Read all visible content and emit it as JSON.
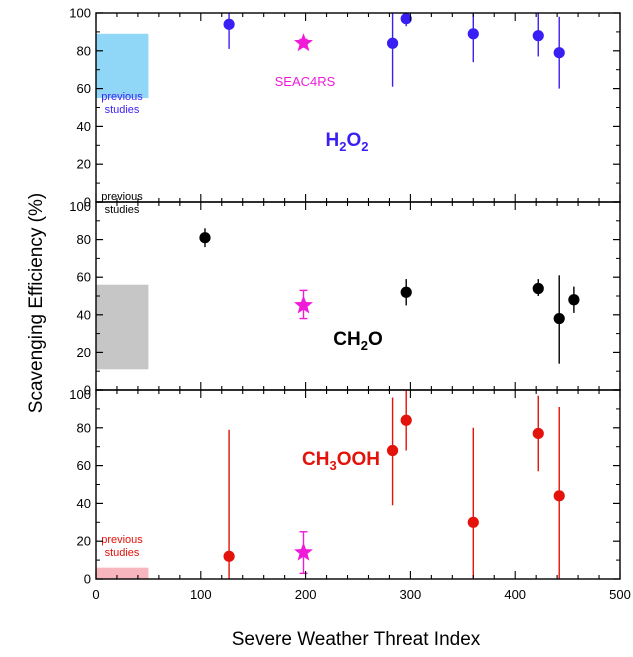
{
  "figure": {
    "xlabel": "Severe Weather Threat Index",
    "ylabel": "Scavenging Efficiency (%)"
  },
  "chart_data": [
    {
      "type": "scatter",
      "species": {
        "main": "H",
        "sub1": "2",
        "mid": "O",
        "sub2": "2",
        "end": ""
      },
      "color": "#3a1ff5",
      "prev_color": "#8fd6f7",
      "prev_label": [
        "previous",
        "studies"
      ],
      "prev_label_color": "#3a1ff5",
      "campaign_label": "SEAC4RS",
      "campaign_color": "#f01bd8",
      "xlim": [
        0,
        500
      ],
      "ylim": [
        0,
        100
      ],
      "yticks": [
        0,
        20,
        40,
        60,
        80,
        100
      ],
      "previous_studies": {
        "x": [
          0,
          50
        ],
        "y": [
          55,
          89
        ]
      },
      "seac4rs": {
        "x": 198,
        "y": 84,
        "low": 82,
        "high": 86
      },
      "points": [
        {
          "x": 127,
          "y": 94,
          "low": 81,
          "high": 100
        },
        {
          "x": 283,
          "y": 84,
          "low": 61,
          "high": 100
        },
        {
          "x": 296,
          "y": 97,
          "low": 93,
          "high": 100
        },
        {
          "x": 360,
          "y": 89,
          "low": 74,
          "high": 100
        },
        {
          "x": 422,
          "y": 88,
          "low": 77,
          "high": 100
        },
        {
          "x": 442,
          "y": 79,
          "low": 60,
          "high": 98
        }
      ]
    },
    {
      "type": "scatter",
      "species": {
        "main": "CH",
        "sub1": "2",
        "mid": "O",
        "sub2": "",
        "end": ""
      },
      "color": "#000000",
      "prev_color": "#c6c6c6",
      "prev_label": [
        "previous",
        "studies"
      ],
      "prev_label_color": "#000000",
      "campaign_color": "#f01bd8",
      "xlim": [
        0,
        500
      ],
      "ylim": [
        0,
        100
      ],
      "yticks": [
        0,
        20,
        40,
        60,
        80,
        100
      ],
      "previous_studies": {
        "x": [
          0,
          50
        ],
        "y": [
          11,
          56
        ]
      },
      "seac4rs": {
        "x": 198,
        "y": 45,
        "low": 38,
        "high": 53
      },
      "points": [
        {
          "x": 104,
          "y": 81,
          "low": 76,
          "high": 86
        },
        {
          "x": 296,
          "y": 52,
          "low": 45,
          "high": 59
        },
        {
          "x": 422,
          "y": 54,
          "low": 50,
          "high": 59
        },
        {
          "x": 442,
          "y": 38,
          "low": 14,
          "high": 61
        },
        {
          "x": 456,
          "y": 48,
          "low": 41,
          "high": 55
        }
      ]
    },
    {
      "type": "scatter",
      "species": {
        "main": "CH",
        "sub1": "3",
        "mid": "OOH",
        "sub2": "",
        "end": ""
      },
      "color": "#e3120b",
      "prev_color": "#f7b6bd",
      "prev_label": [
        "previous",
        "studies"
      ],
      "prev_label_color": "#e3120b",
      "campaign_color": "#f01bd8",
      "xlim": [
        0,
        500
      ],
      "ylim": [
        0,
        100
      ],
      "yticks": [
        0,
        20,
        40,
        60,
        80,
        100
      ],
      "xticks": [
        0,
        100,
        200,
        300,
        400,
        500
      ],
      "previous_studies": {
        "x": [
          0,
          50
        ],
        "y": [
          0,
          6
        ]
      },
      "seac4rs": {
        "x": 198,
        "y": 14,
        "low": 3,
        "high": 25
      },
      "points": [
        {
          "x": 127,
          "y": 12,
          "low": 0,
          "high": 79
        },
        {
          "x": 283,
          "y": 68,
          "low": 39,
          "high": 96
        },
        {
          "x": 296,
          "y": 84,
          "low": 68,
          "high": 100
        },
        {
          "x": 360,
          "y": 30,
          "low": 0,
          "high": 80
        },
        {
          "x": 422,
          "y": 77,
          "low": 57,
          "high": 97
        },
        {
          "x": 442,
          "y": 44,
          "low": 0,
          "high": 91
        }
      ]
    }
  ]
}
